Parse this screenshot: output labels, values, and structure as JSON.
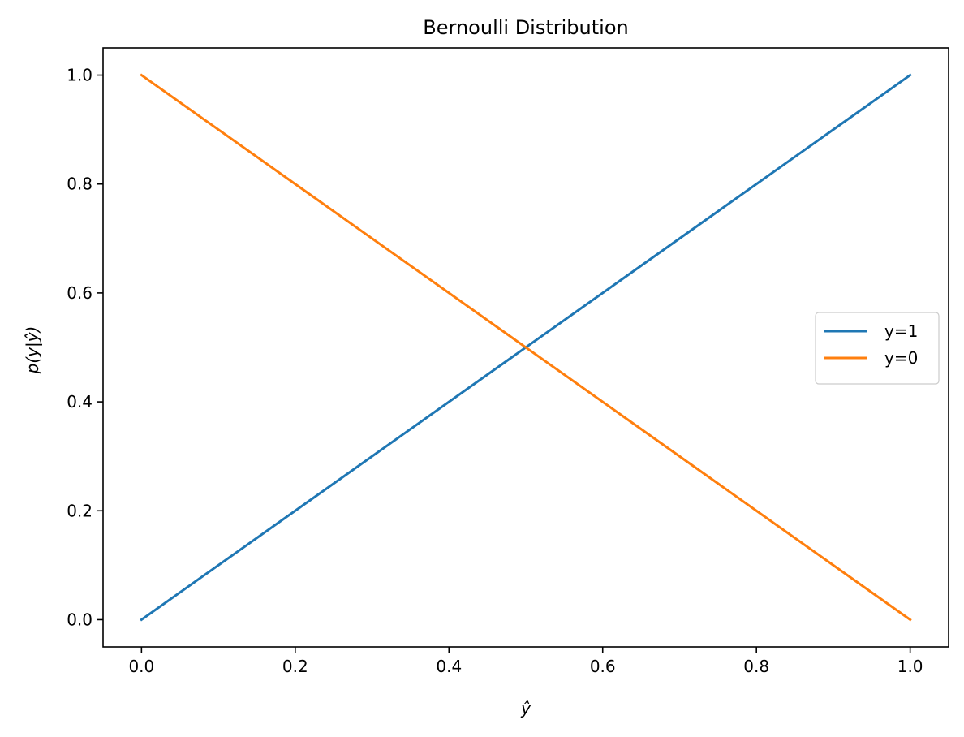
{
  "chart_data": {
    "type": "line",
    "title": "Bernoulli Distribution",
    "xlabel": "ŷ",
    "ylabel": "p(y|ŷ)",
    "xlim": [
      -0.05,
      1.05
    ],
    "ylim": [
      -0.05,
      1.05
    ],
    "xticks": [
      0.0,
      0.2,
      0.4,
      0.6,
      0.8,
      1.0
    ],
    "xtick_labels": [
      "0.0",
      "0.2",
      "0.4",
      "0.6",
      "0.8",
      "1.0"
    ],
    "yticks": [
      0.0,
      0.2,
      0.4,
      0.6,
      0.8,
      1.0
    ],
    "ytick_labels": [
      "0.0",
      "0.2",
      "0.4",
      "0.6",
      "0.8",
      "1.0"
    ],
    "grid": false,
    "legend_position": "center-right",
    "series": [
      {
        "name": "y=1",
        "color": "#1f77b4",
        "x": [
          0.0,
          1.0
        ],
        "y": [
          0.0,
          1.0
        ]
      },
      {
        "name": "y=0",
        "color": "#ff7f0e",
        "x": [
          0.0,
          1.0
        ],
        "y": [
          1.0,
          0.0
        ]
      }
    ]
  }
}
